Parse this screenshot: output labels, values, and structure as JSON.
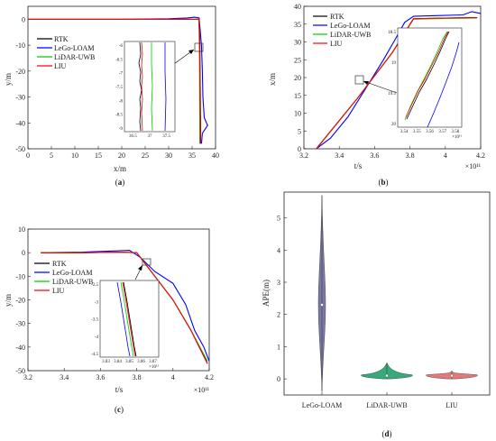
{
  "colors": {
    "rtk": "#000000",
    "lego": "#0000ff",
    "lidar": "#00cc00",
    "liu": "#ff0000",
    "violin_lego": "#6a6a9a",
    "violin_lidar": "#22a06b",
    "violin_liu": "#e06a6a"
  },
  "legend": [
    "RTK",
    "LeGo-LOAM",
    "LiDAR-UWB",
    "LIU"
  ],
  "panel_labels": {
    "a": "a",
    "b": "b",
    "c": "c",
    "d": "d"
  },
  "chart_data": [
    {
      "type": "line",
      "panel": "a",
      "xlabel": "x/m",
      "ylabel": "y/m",
      "xlim": [
        0,
        40
      ],
      "ylim": [
        -50,
        5
      ],
      "xticks": [
        0,
        5,
        10,
        15,
        20,
        25,
        30,
        35,
        40
      ],
      "yticks": [
        0,
        -10,
        -20,
        -30,
        -40,
        -50
      ],
      "series": [
        {
          "name": "RTK",
          "points": [
            [
              0,
              0
            ],
            [
              10,
              0
            ],
            [
              20,
              0
            ],
            [
              30,
              0
            ],
            [
              35,
              0
            ],
            [
              36.5,
              0
            ],
            [
              36.6,
              -5
            ],
            [
              36.65,
              -10
            ],
            [
              36.7,
              -20
            ],
            [
              36.75,
              -30
            ],
            [
              36.8,
              -40
            ],
            [
              36.8,
              -48
            ]
          ]
        },
        {
          "name": "LeGo-LOAM",
          "points": [
            [
              0,
              0
            ],
            [
              10,
              0
            ],
            [
              20,
              0
            ],
            [
              30,
              0.2
            ],
            [
              34,
              0.5
            ],
            [
              35.5,
              0.8
            ],
            [
              36.5,
              0.5
            ],
            [
              37,
              -10
            ],
            [
              37.2,
              -20
            ],
            [
              37.3,
              -30
            ],
            [
              37.6,
              -38
            ],
            [
              38.3,
              -41
            ],
            [
              37.2,
              -44
            ],
            [
              37,
              -48
            ]
          ]
        },
        {
          "name": "LiDAR-UWB",
          "points": [
            [
              0,
              0
            ],
            [
              10,
              0
            ],
            [
              20,
              0
            ],
            [
              30,
              0
            ],
            [
              35,
              0
            ],
            [
              36.4,
              0
            ],
            [
              36.5,
              -5
            ],
            [
              36.55,
              -10
            ],
            [
              36.6,
              -20
            ],
            [
              36.62,
              -30
            ],
            [
              36.65,
              -40
            ],
            [
              36.65,
              -48
            ]
          ]
        },
        {
          "name": "LIU",
          "points": [
            [
              0,
              0
            ],
            [
              10,
              0
            ],
            [
              20,
              0
            ],
            [
              30,
              0
            ],
            [
              35,
              0
            ],
            [
              36.5,
              0
            ],
            [
              36.55,
              -5
            ],
            [
              36.6,
              -10
            ],
            [
              36.65,
              -20
            ],
            [
              36.7,
              -30
            ],
            [
              36.75,
              -40
            ],
            [
              36.75,
              -48
            ]
          ]
        }
      ],
      "inset": {
        "xlim": [
          36.3,
          37.8
        ],
        "ylim": [
          -9,
          -5.8
        ],
        "xticks": [
          "36.5",
          "37",
          "37.5"
        ],
        "yticks": [
          "-6",
          "-6.5",
          "-7",
          "-7.5",
          "-8",
          "-8.5",
          "-9"
        ]
      }
    },
    {
      "type": "line",
      "panel": "b",
      "xlabel": "t/s",
      "ylabel": "x/m",
      "xexp": "×10¹¹",
      "xlim": [
        3.2,
        4.2
      ],
      "ylim": [
        0,
        40
      ],
      "xticks": [
        "3.2",
        "3.4",
        "3.6",
        "3.8",
        "4",
        "4.2"
      ],
      "yticks": [
        0,
        5,
        10,
        15,
        20,
        25,
        30,
        35,
        40
      ],
      "series": [
        {
          "name": "RTK",
          "points": [
            [
              3.27,
              0
            ],
            [
              3.5,
              14
            ],
            [
              3.7,
              27
            ],
            [
              3.82,
              36.5
            ],
            [
              4.0,
              36.7
            ],
            [
              4.18,
              36.8
            ]
          ]
        },
        {
          "name": "LeGo-LOAM",
          "points": [
            [
              3.27,
              0
            ],
            [
              3.35,
              3
            ],
            [
              3.45,
              9
            ],
            [
              3.55,
              17
            ],
            [
              3.65,
              25
            ],
            [
              3.72,
              31
            ],
            [
              3.77,
              35.5
            ],
            [
              3.82,
              37.2
            ],
            [
              3.95,
              37.4
            ],
            [
              4.1,
              37.6
            ],
            [
              4.15,
              38.5
            ],
            [
              4.2,
              38
            ]
          ]
        },
        {
          "name": "LiDAR-UWB",
          "points": [
            [
              3.27,
              0
            ],
            [
              3.5,
              14
            ],
            [
              3.7,
              27
            ],
            [
              3.82,
              36.4
            ],
            [
              4.0,
              36.6
            ],
            [
              4.18,
              36.7
            ]
          ]
        },
        {
          "name": "LIU",
          "points": [
            [
              3.27,
              0
            ],
            [
              3.5,
              14
            ],
            [
              3.7,
              27
            ],
            [
              3.82,
              36.5
            ],
            [
              4.0,
              36.7
            ],
            [
              4.18,
              36.8
            ]
          ]
        }
      ],
      "inset": {
        "xticks": [
          "3.54",
          "3.55",
          "3.56",
          "3.57",
          "3.58"
        ],
        "yticks": [
          "18.5",
          "19",
          "19.5",
          "20"
        ],
        "xexp": "×10¹¹"
      }
    },
    {
      "type": "line",
      "panel": "c",
      "xlabel": "t/s",
      "ylabel": "y/m",
      "xexp": "×10¹¹",
      "xlim": [
        3.2,
        4.2
      ],
      "ylim": [
        -50,
        10
      ],
      "xticks": [
        "3.2",
        "3.4",
        "3.6",
        "3.8",
        "4",
        "4.2"
      ],
      "yticks": [
        10,
        0,
        -10,
        -20,
        -30,
        -40,
        -50
      ],
      "series": [
        {
          "name": "RTK",
          "points": [
            [
              3.27,
              0
            ],
            [
              3.5,
              0
            ],
            [
              3.7,
              0.2
            ],
            [
              3.8,
              0
            ],
            [
              3.9,
              -10
            ],
            [
              4.0,
              -20
            ],
            [
              4.1,
              -33
            ],
            [
              4.19,
              -47
            ]
          ]
        },
        {
          "name": "LeGo-LOAM",
          "points": [
            [
              3.27,
              0
            ],
            [
              3.5,
              0.2
            ],
            [
              3.7,
              0.8
            ],
            [
              3.76,
              1
            ],
            [
              3.82,
              -2
            ],
            [
              3.9,
              -8
            ],
            [
              4.0,
              -13
            ],
            [
              4.07,
              -22
            ],
            [
              4.12,
              -33
            ],
            [
              4.17,
              -40
            ],
            [
              4.2,
              -46
            ]
          ]
        },
        {
          "name": "LiDAR-UWB",
          "points": [
            [
              3.27,
              0
            ],
            [
              3.5,
              0
            ],
            [
              3.7,
              0.2
            ],
            [
              3.8,
              0
            ],
            [
              3.9,
              -10
            ],
            [
              4.0,
              -20
            ],
            [
              4.1,
              -33
            ],
            [
              4.19,
              -46
            ]
          ]
        },
        {
          "name": "LIU",
          "points": [
            [
              3.27,
              0
            ],
            [
              3.5,
              0
            ],
            [
              3.7,
              0.2
            ],
            [
              3.8,
              0
            ],
            [
              3.9,
              -10
            ],
            [
              4.0,
              -20
            ],
            [
              4.1,
              -33
            ],
            [
              4.19,
              -47
            ]
          ]
        }
      ],
      "inset": {
        "xticks": [
          "3.83",
          "3.84",
          "3.85",
          "3.86",
          "3.87"
        ],
        "yticks": [
          "-2.5",
          "-3",
          "-3.5",
          "-4",
          "-4.5"
        ],
        "xexp": "×10¹¹"
      }
    },
    {
      "type": "violin",
      "panel": "d",
      "ylabel": "APE(m)",
      "ylim": [
        -0.5,
        5.8
      ],
      "yticks": [
        0,
        1,
        2,
        3,
        4,
        5
      ],
      "categories": [
        "LeGo-LOAM",
        "LiDAR-UWB",
        "LIU"
      ],
      "violins": [
        {
          "name": "LeGo-LOAM",
          "min": -0.4,
          "max": 5.7,
          "median": 2.3,
          "widest_at": 2.3
        },
        {
          "name": "LiDAR-UWB",
          "min": 0.0,
          "max": 0.5,
          "median": 0.1,
          "widest_at": 0.1
        },
        {
          "name": "LIU",
          "min": 0.0,
          "max": 0.25,
          "median": 0.1,
          "widest_at": 0.1
        }
      ]
    }
  ]
}
